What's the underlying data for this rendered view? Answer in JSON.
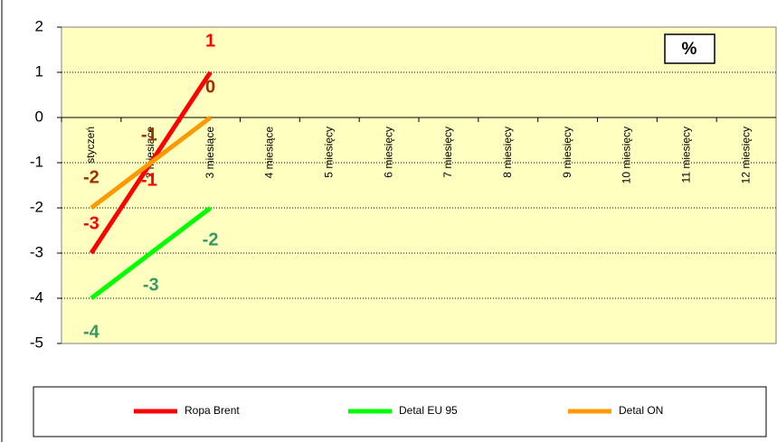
{
  "chart_data": {
    "type": "line",
    "annotation": "%",
    "categories": [
      "styczeń",
      "2 miesiące",
      "3 miesiące",
      "4 miesiące",
      "5 miesięcy",
      "6 miesięcy",
      "7 miesięcy",
      "8 miesięcy",
      "9 miesięcy",
      "10 miesięcy",
      "11 miesięcy",
      "12 miesięcy"
    ],
    "series": [
      {
        "name": "Ropa Brent",
        "color": "#ff0000",
        "label_color": "#ff0000",
        "values": [
          -3,
          -1,
          1,
          null,
          null,
          null,
          null,
          null,
          null,
          null,
          null,
          null
        ]
      },
      {
        "name": "Detal EU 95",
        "color": "#00ff00",
        "label_color": "#339966",
        "values": [
          -4,
          -3,
          -2,
          null,
          null,
          null,
          null,
          null,
          null,
          null,
          null,
          null
        ]
      },
      {
        "name": "Detal ON",
        "color": "#ff9900",
        "label_color": "#993300",
        "values": [
          -2,
          -1,
          0,
          null,
          null,
          null,
          null,
          null,
          null,
          null,
          null,
          null
        ]
      }
    ],
    "ylim": [
      -5,
      2
    ],
    "yticks": [
      -5,
      -4,
      -3,
      -2,
      -1,
      0,
      1,
      2
    ],
    "grid": true,
    "legend": "bottom",
    "plot_color": "#ffffc0"
  }
}
